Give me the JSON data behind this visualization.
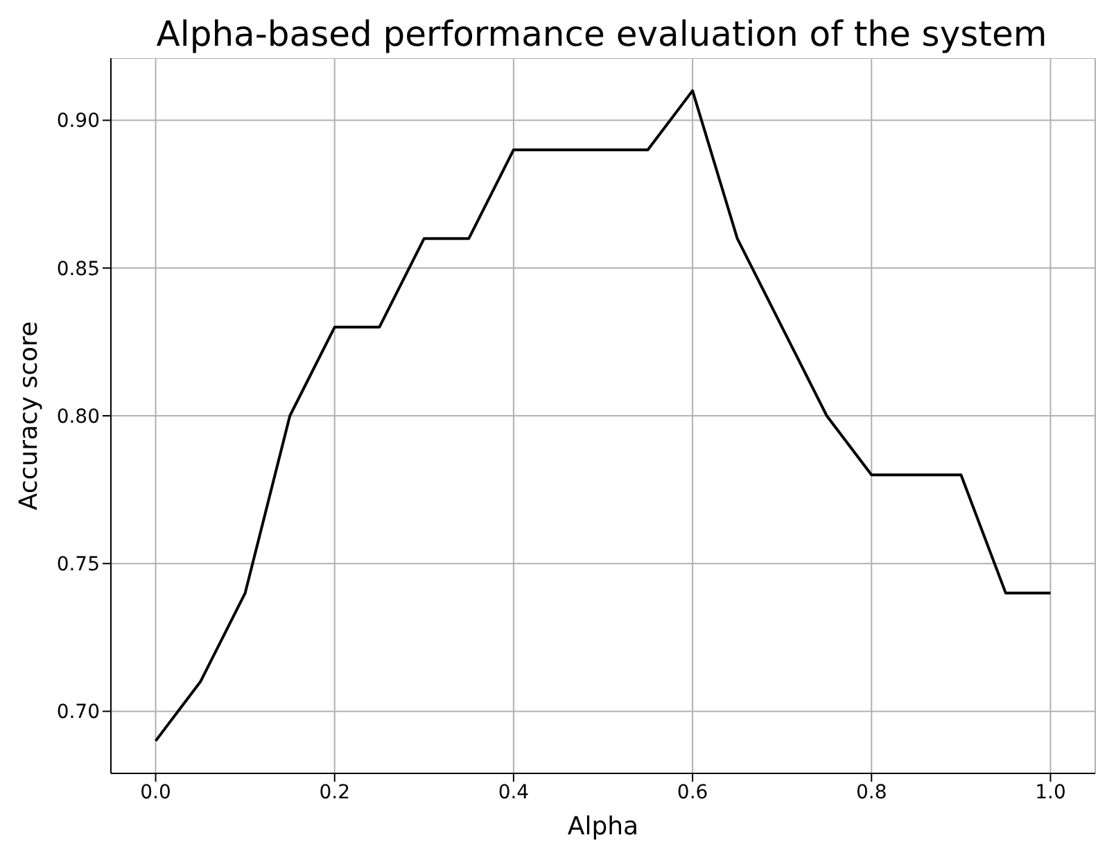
{
  "chart_data": {
    "type": "line",
    "title": "Alpha-based performance evaluation of the system",
    "xlabel": "Alpha",
    "ylabel": "Accuracy score",
    "x": [
      0,
      0.05,
      0.1,
      0.15,
      0.2,
      0.25,
      0.3,
      0.35,
      0.4,
      0.45,
      0.5,
      0.55,
      0.6,
      0.65,
      0.7,
      0.75,
      0.8,
      0.85,
      0.9,
      0.95,
      1.0
    ],
    "series": [
      {
        "color": "#000000",
        "values": [
          0.69,
          0.71,
          0.74,
          0.8,
          0.83,
          0.83,
          0.86,
          0.86,
          0.89,
          0.89,
          0.89,
          0.89,
          0.91,
          0.86,
          0.83,
          0.8,
          0.78,
          0.78,
          0.78,
          0.74,
          0.74
        ]
      }
    ],
    "xlim": [
      -0.05,
      1.05
    ],
    "ylim": [
      0.679,
      0.921
    ],
    "xticks": [
      {
        "value": 0,
        "label": "0.0"
      },
      {
        "value": 0.2,
        "label": "0.2"
      },
      {
        "value": 0.4,
        "label": "0.4"
      },
      {
        "value": 0.6,
        "label": "0.6"
      },
      {
        "value": 0.8,
        "label": "0.8"
      },
      {
        "value": 1,
        "label": "1.0"
      }
    ],
    "yticks": [
      {
        "value": 0.7,
        "label": "0.70"
      },
      {
        "value": 0.75,
        "label": "0.75"
      },
      {
        "value": 0.8,
        "label": "0.80"
      },
      {
        "value": 0.85,
        "label": "0.85"
      },
      {
        "value": 0.9,
        "label": "0.90"
      }
    ],
    "grid": true,
    "marker": "none",
    "line_style": "solid"
  }
}
